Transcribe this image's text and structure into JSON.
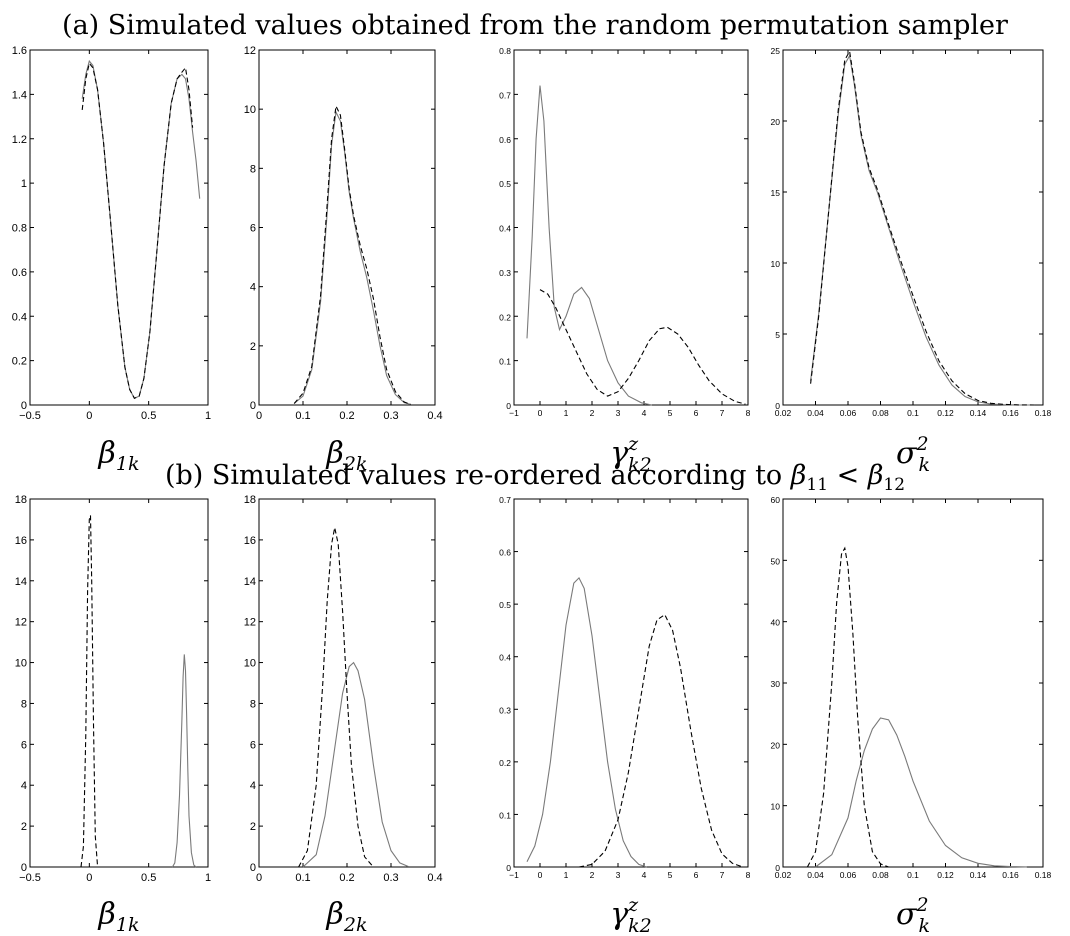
{
  "figure": {
    "title_a": "(a) Simulated values obtained from the random permutation sampler",
    "title_b_prefix": "(b) Simulated values re-ordered according to ",
    "title_b_condition": {
      "left": "β",
      "left_sub": "11",
      "op": " < ",
      "right": "β",
      "right_sub": "12"
    }
  },
  "chart_data": [
    {
      "type": "line",
      "panel": "a1",
      "xlabel": {
        "sym": "β",
        "sub": "1k"
      },
      "xlim": [
        -0.5,
        1
      ],
      "ylim": [
        0,
        1.6
      ],
      "xticks": [
        "-0.5",
        "0",
        "0.5",
        "1"
      ],
      "yticks": [
        "0",
        "0.2",
        "0.4",
        "0.6",
        "0.8",
        "1",
        "1.2",
        "1.4",
        "1.6"
      ],
      "series": [
        {
          "style": "solid",
          "x": [
            -0.06,
            -0.03,
            0,
            0.03,
            0.07,
            0.12,
            0.18,
            0.24,
            0.3,
            0.34,
            0.38,
            0.42,
            0.46,
            0.51,
            0.57,
            0.63,
            0.69,
            0.74,
            0.78,
            0.81,
            0.84,
            0.87,
            0.9,
            0.93
          ],
          "y": [
            1.38,
            1.49,
            1.55,
            1.53,
            1.42,
            1.18,
            0.82,
            0.45,
            0.17,
            0.07,
            0.03,
            0.04,
            0.12,
            0.33,
            0.7,
            1.08,
            1.36,
            1.47,
            1.49,
            1.47,
            1.38,
            1.23,
            1.1,
            0.93
          ]
        },
        {
          "style": "dashed",
          "x": [
            -0.06,
            -0.03,
            0,
            0.03,
            0.07,
            0.12,
            0.18,
            0.24,
            0.3,
            0.34,
            0.38,
            0.42,
            0.46,
            0.51,
            0.57,
            0.63,
            0.69,
            0.74,
            0.78,
            0.81,
            0.84,
            0.87
          ],
          "y": [
            1.33,
            1.47,
            1.54,
            1.52,
            1.42,
            1.18,
            0.82,
            0.45,
            0.17,
            0.07,
            0.03,
            0.04,
            0.12,
            0.33,
            0.7,
            1.08,
            1.36,
            1.47,
            1.5,
            1.52,
            1.42,
            1.25
          ]
        }
      ]
    },
    {
      "type": "line",
      "panel": "a2",
      "xlabel": {
        "sym": "β",
        "sub": "2k"
      },
      "xlim": [
        0,
        0.4
      ],
      "ylim": [
        0,
        12
      ],
      "xticks": [
        "0",
        "0.1",
        "0.2",
        "0.3",
        "0.4"
      ],
      "yticks": [
        "0",
        "2",
        "4",
        "6",
        "8",
        "10",
        "12"
      ],
      "series": [
        {
          "style": "solid",
          "x": [
            0.08,
            0.1,
            0.12,
            0.14,
            0.155,
            0.165,
            0.175,
            0.185,
            0.195,
            0.205,
            0.215,
            0.23,
            0.245,
            0.26,
            0.275,
            0.29,
            0.31,
            0.33,
            0.345
          ],
          "y": [
            0.05,
            0.3,
            1.2,
            3.5,
            6.5,
            8.8,
            9.9,
            9.6,
            8.5,
            7.2,
            6.3,
            5.2,
            4.3,
            3.2,
            2.0,
            1.0,
            0.35,
            0.08,
            0.02
          ]
        },
        {
          "style": "dashed",
          "x": [
            0.08,
            0.1,
            0.12,
            0.14,
            0.155,
            0.165,
            0.175,
            0.185,
            0.195,
            0.205,
            0.215,
            0.23,
            0.245,
            0.26,
            0.275,
            0.29,
            0.31,
            0.33,
            0.345
          ],
          "y": [
            0.05,
            0.4,
            1.3,
            3.7,
            6.8,
            9.0,
            10.1,
            9.8,
            8.6,
            7.3,
            6.4,
            5.4,
            4.6,
            3.6,
            2.3,
            1.2,
            0.45,
            0.1,
            0.02
          ]
        }
      ]
    },
    {
      "type": "line",
      "panel": "a3",
      "xlabel": {
        "sym": "γ",
        "sub": "k2",
        "sup": "z"
      },
      "xlim": [
        -1,
        8
      ],
      "ylim": [
        0,
        0.8
      ],
      "xticks": [
        "-1",
        "0",
        "1",
        "2",
        "3",
        "4",
        "5",
        "6",
        "7",
        "8"
      ],
      "yticks": [
        "0",
        "0.1",
        "0.2",
        "0.3",
        "0.4",
        "0.5",
        "0.6",
        "0.7",
        "0.8"
      ],
      "series": [
        {
          "style": "solid",
          "x": [
            -0.5,
            -0.3,
            -0.15,
            0,
            0.15,
            0.35,
            0.55,
            0.75,
            1.0,
            1.3,
            1.6,
            1.9,
            2.2,
            2.6,
            3.0,
            3.4,
            3.9,
            4.3
          ],
          "y": [
            0.15,
            0.38,
            0.6,
            0.72,
            0.64,
            0.4,
            0.22,
            0.17,
            0.2,
            0.25,
            0.265,
            0.24,
            0.18,
            0.1,
            0.05,
            0.02,
            0.005,
            0
          ]
        },
        {
          "style": "dashed",
          "x": [
            0,
            0.3,
            0.6,
            1.0,
            1.4,
            1.8,
            2.2,
            2.6,
            3.0,
            3.4,
            3.8,
            4.2,
            4.6,
            4.9,
            5.3,
            5.7,
            6.1,
            6.5,
            7.0,
            7.5,
            7.9
          ],
          "y": [
            0.26,
            0.25,
            0.22,
            0.17,
            0.12,
            0.07,
            0.035,
            0.02,
            0.03,
            0.06,
            0.1,
            0.145,
            0.172,
            0.175,
            0.16,
            0.13,
            0.09,
            0.055,
            0.025,
            0.008,
            0.002
          ]
        }
      ]
    },
    {
      "type": "line",
      "panel": "a4",
      "xlabel": {
        "sym": "σ",
        "sub": "k",
        "sup": "2"
      },
      "xlim": [
        0.02,
        0.18
      ],
      "ylim": [
        0,
        25
      ],
      "xticks": [
        "0.02",
        "0.04",
        "0.06",
        "0.08",
        "0.1",
        "0.12",
        "0.14",
        "0.16",
        "0.18"
      ],
      "yticks": [
        "0",
        "5",
        "10",
        "15",
        "20",
        "25"
      ],
      "series": [
        {
          "style": "solid",
          "x": [
            0.037,
            0.042,
            0.048,
            0.054,
            0.058,
            0.061,
            0.064,
            0.068,
            0.073,
            0.078,
            0.085,
            0.092,
            0.1,
            0.108,
            0.116,
            0.124,
            0.132,
            0.14,
            0.148,
            0.156,
            0.165,
            0.175
          ],
          "y": [
            1.7,
            6.5,
            13.5,
            20.5,
            24.0,
            24.6,
            22.5,
            19.0,
            16.5,
            15.0,
            12.5,
            10.0,
            7.3,
            4.8,
            2.8,
            1.4,
            0.6,
            0.22,
            0.07,
            0.02,
            0,
            0
          ]
        },
        {
          "style": "dashed",
          "x": [
            0.037,
            0.042,
            0.048,
            0.054,
            0.058,
            0.061,
            0.064,
            0.068,
            0.073,
            0.078,
            0.085,
            0.092,
            0.1,
            0.108,
            0.116,
            0.124,
            0.132,
            0.14,
            0.148,
            0.156,
            0.165,
            0.175
          ],
          "y": [
            1.5,
            6.3,
            13.5,
            20.8,
            24.3,
            24.9,
            22.7,
            19.2,
            16.7,
            15.2,
            12.7,
            10.3,
            7.7,
            5.2,
            3.1,
            1.7,
            0.8,
            0.32,
            0.12,
            0.04,
            0.01,
            0
          ]
        }
      ]
    },
    {
      "type": "line",
      "panel": "b1",
      "xlabel": {
        "sym": "β",
        "sub": "1k"
      },
      "xlim": [
        -0.5,
        1
      ],
      "ylim": [
        0,
        18
      ],
      "xticks": [
        "-0.5",
        "0",
        "0.5",
        "1"
      ],
      "yticks": [
        "0",
        "2",
        "4",
        "6",
        "8",
        "10",
        "12",
        "14",
        "16",
        "18"
      ],
      "series": [
        {
          "style": "solid",
          "x": [
            0.7,
            0.72,
            0.74,
            0.76,
            0.78,
            0.79,
            0.8,
            0.81,
            0.82,
            0.83,
            0.84,
            0.86,
            0.88,
            0.9
          ],
          "y": [
            0,
            0.2,
            1.2,
            3.5,
            7.2,
            9.3,
            10.4,
            9.6,
            7.5,
            4.8,
            2.5,
            0.7,
            0.1,
            0
          ]
        },
        {
          "style": "dashed",
          "x": [
            -0.07,
            -0.05,
            -0.03,
            -0.015,
            0,
            0.01,
            0.02,
            0.035,
            0.05,
            0.07
          ],
          "y": [
            0,
            1.0,
            6.5,
            13.5,
            17.0,
            17.2,
            14.0,
            7.0,
            1.5,
            0
          ]
        }
      ]
    },
    {
      "type": "line",
      "panel": "b2",
      "xlabel": {
        "sym": "β",
        "sub": "2k"
      },
      "xlim": [
        0,
        0.4
      ],
      "ylim": [
        0,
        18
      ],
      "xticks": [
        "0",
        "0.1",
        "0.2",
        "0.3",
        "0.4"
      ],
      "yticks": [
        "0",
        "2",
        "4",
        "6",
        "8",
        "10",
        "12",
        "14",
        "16",
        "18"
      ],
      "series": [
        {
          "style": "solid",
          "x": [
            0.1,
            0.13,
            0.15,
            0.17,
            0.19,
            0.205,
            0.215,
            0.225,
            0.24,
            0.26,
            0.28,
            0.3,
            0.32,
            0.34
          ],
          "y": [
            0,
            0.6,
            2.5,
            5.5,
            8.5,
            9.8,
            10.0,
            9.6,
            8.2,
            5.0,
            2.2,
            0.8,
            0.2,
            0.02
          ]
        },
        {
          "style": "dashed",
          "x": [
            0.09,
            0.11,
            0.13,
            0.145,
            0.155,
            0.165,
            0.172,
            0.18,
            0.19,
            0.2,
            0.21,
            0.225,
            0.24,
            0.26
          ],
          "y": [
            0,
            0.8,
            4.0,
            9.0,
            13.0,
            15.8,
            16.6,
            15.8,
            12.5,
            8.5,
            5.0,
            2.0,
            0.5,
            0
          ]
        }
      ]
    },
    {
      "type": "line",
      "panel": "b3",
      "xlabel": {
        "sym": "γ",
        "sub": "k2",
        "sup": "z"
      },
      "xlim": [
        -1,
        8
      ],
      "ylim": [
        0,
        0.7
      ],
      "xticks": [
        "-1",
        "0",
        "1",
        "2",
        "3",
        "4",
        "5",
        "6",
        "7",
        "8"
      ],
      "yticks": [
        "0",
        "0.1",
        "0.2",
        "0.3",
        "0.4",
        "0.5",
        "0.6",
        "0.7"
      ],
      "series": [
        {
          "style": "solid",
          "x": [
            -0.5,
            -0.2,
            0.1,
            0.4,
            0.7,
            1.0,
            1.3,
            1.5,
            1.7,
            2.0,
            2.3,
            2.6,
            2.9,
            3.2,
            3.5,
            3.8,
            4.1
          ],
          "y": [
            0.01,
            0.04,
            0.1,
            0.2,
            0.33,
            0.46,
            0.54,
            0.55,
            0.53,
            0.44,
            0.32,
            0.2,
            0.11,
            0.05,
            0.02,
            0.005,
            0
          ]
        },
        {
          "style": "dashed",
          "x": [
            1.5,
            2.0,
            2.5,
            3.0,
            3.4,
            3.8,
            4.2,
            4.5,
            4.8,
            5.1,
            5.4,
            5.8,
            6.2,
            6.6,
            7.0,
            7.4,
            7.8
          ],
          "y": [
            0,
            0.005,
            0.03,
            0.09,
            0.18,
            0.3,
            0.42,
            0.47,
            0.48,
            0.45,
            0.38,
            0.26,
            0.15,
            0.07,
            0.025,
            0.007,
            0
          ]
        }
      ]
    },
    {
      "type": "line",
      "panel": "b4",
      "xlabel": {
        "sym": "σ",
        "sub": "k",
        "sup": "2"
      },
      "xlim": [
        0.02,
        0.18
      ],
      "ylim": [
        0,
        60
      ],
      "xticks": [
        "0.02",
        "0.04",
        "0.06",
        "0.08",
        "0.1",
        "0.12",
        "0.14",
        "0.16",
        "0.18"
      ],
      "yticks": [
        "0",
        "10",
        "20",
        "30",
        "40",
        "50",
        "60"
      ],
      "series": [
        {
          "style": "solid",
          "x": [
            0.04,
            0.05,
            0.06,
            0.065,
            0.07,
            0.075,
            0.08,
            0.085,
            0.09,
            0.095,
            0.1,
            0.11,
            0.12,
            0.13,
            0.14,
            0.15,
            0.16,
            0.17
          ],
          "y": [
            0,
            2,
            8,
            14,
            19,
            22.5,
            24.3,
            24.0,
            21.5,
            18.0,
            14.0,
            7.5,
            3.5,
            1.5,
            0.6,
            0.2,
            0.06,
            0.01
          ]
        },
        {
          "style": "dashed",
          "x": [
            0.035,
            0.04,
            0.045,
            0.05,
            0.053,
            0.056,
            0.058,
            0.06,
            0.063,
            0.066,
            0.07,
            0.075,
            0.08,
            0.085
          ],
          "y": [
            0,
            2.5,
            12,
            30,
            43,
            51,
            52,
            49,
            38,
            24,
            10,
            2.5,
            0.5,
            0
          ]
        }
      ]
    }
  ]
}
